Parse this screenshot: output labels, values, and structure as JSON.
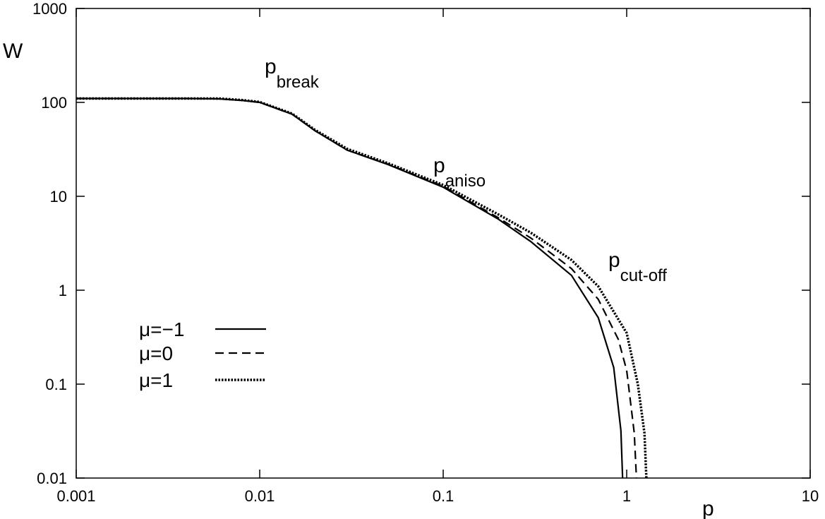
{
  "chart_data": {
    "type": "line",
    "xlabel": "p",
    "ylabel": "W",
    "xscale": "log",
    "yscale": "log",
    "xlim": [
      0.001,
      10
    ],
    "ylim": [
      0.01,
      1000
    ],
    "xticks": [
      0.001,
      0.01,
      0.1,
      1,
      10
    ],
    "yticks": [
      0.01,
      0.1,
      1,
      10,
      100,
      1000
    ],
    "legend": "lower left",
    "annotations": [
      {
        "text": "p",
        "sub": "break"
      },
      {
        "text": "p",
        "sub": "aniso"
      },
      {
        "text": "p",
        "sub": "cut-off"
      }
    ],
    "series": [
      {
        "name": "μ=−1",
        "color": "#000000",
        "style": "solid",
        "x": [
          0.001,
          0.002,
          0.004,
          0.006,
          0.008,
          0.01,
          0.015,
          0.02,
          0.03,
          0.05,
          0.1,
          0.2,
          0.3,
          0.5,
          0.7,
          0.85,
          0.93,
          0.95
        ],
        "values": [
          110,
          110,
          110,
          109,
          105,
          100,
          75,
          50,
          31,
          21.8,
          12.5,
          5.7,
          3.3,
          1.44,
          0.51,
          0.15,
          0.032,
          0.01
        ]
      },
      {
        "name": "μ=0",
        "color": "#000000",
        "style": "dashed",
        "x": [
          0.001,
          0.002,
          0.004,
          0.006,
          0.008,
          0.01,
          0.015,
          0.02,
          0.03,
          0.05,
          0.1,
          0.2,
          0.3,
          0.5,
          0.7,
          0.9,
          1.0,
          1.1,
          1.13
        ],
        "values": [
          110,
          110,
          110,
          109,
          105,
          100,
          75,
          50,
          31,
          22,
          12.8,
          5.9,
          3.6,
          1.7,
          0.8,
          0.3,
          0.14,
          0.03,
          0.01
        ]
      },
      {
        "name": "μ=1",
        "color": "#000000",
        "style": "dotted",
        "x": [
          0.001,
          0.002,
          0.004,
          0.006,
          0.008,
          0.01,
          0.015,
          0.02,
          0.03,
          0.05,
          0.1,
          0.2,
          0.3,
          0.5,
          0.7,
          1.0,
          1.15,
          1.25,
          1.28
        ],
        "values": [
          110,
          110,
          110,
          110,
          106,
          101,
          76,
          51,
          32,
          22.5,
          13.2,
          6.4,
          4.1,
          2.1,
          1.1,
          0.35,
          0.1,
          0.03,
          0.01
        ]
      }
    ]
  }
}
